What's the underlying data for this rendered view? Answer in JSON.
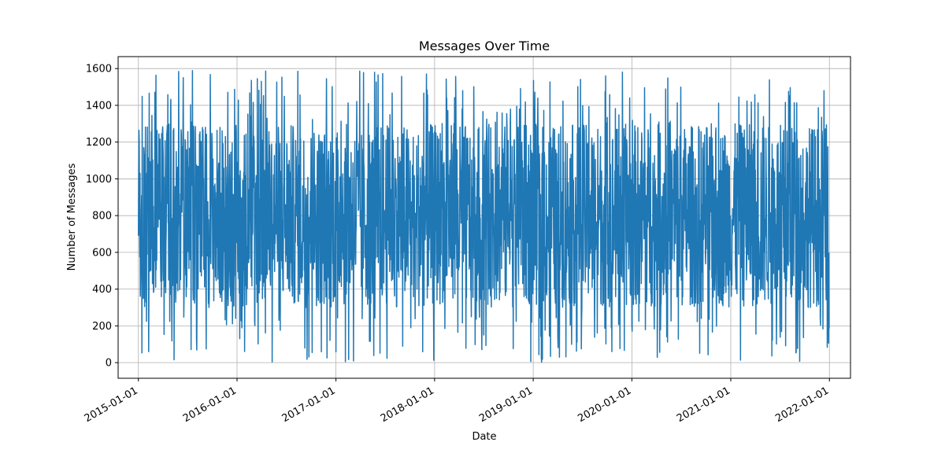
{
  "chart_data": {
    "type": "line",
    "title": "Messages Over Time",
    "xlabel": "Date",
    "ylabel": "Number of Messages",
    "x_range": [
      "2014-10-18",
      "2022-03-20"
    ],
    "ylim": [
      -85,
      1665
    ],
    "x_ticks": [
      "2015-01-01",
      "2016-01-01",
      "2017-01-01",
      "2018-01-01",
      "2019-01-01",
      "2020-01-01",
      "2021-01-01",
      "2022-01-01"
    ],
    "y_ticks": [
      0,
      200,
      400,
      600,
      800,
      1000,
      1200,
      1400,
      1600
    ],
    "grid": true,
    "series_color": "#1f77b4",
    "series": [
      {
        "x_start": "2015-01-01",
        "x_end": "2021-12-31",
        "frequency": "daily",
        "y_min": 0,
        "y_max": 1590,
        "y_typical_range": [
          300,
          1300
        ],
        "values_summary": "dense daily series oscillating roughly between 0 and about 1590 messages"
      }
    ]
  }
}
